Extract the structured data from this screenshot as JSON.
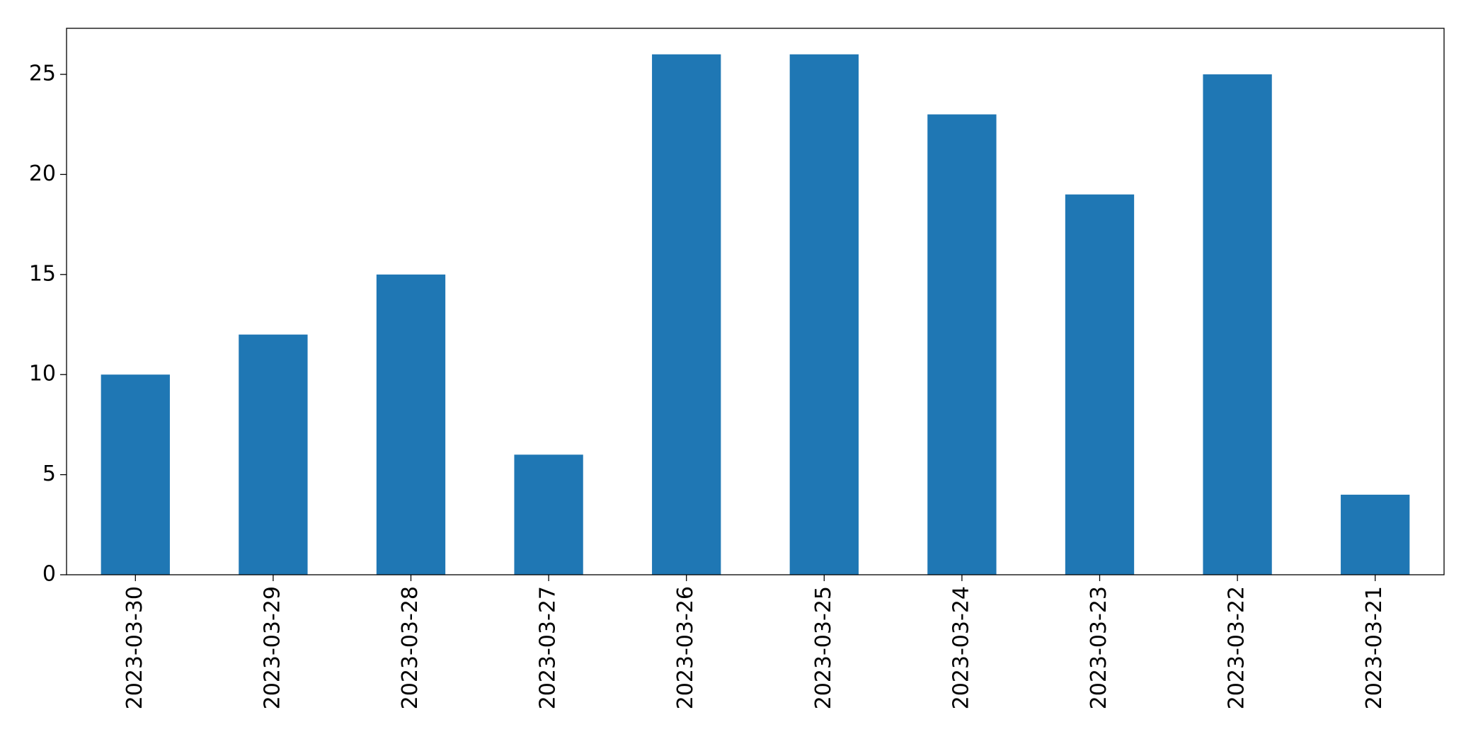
{
  "chart_data": {
    "type": "bar",
    "categories": [
      "2023-03-30",
      "2023-03-29",
      "2023-03-28",
      "2023-03-27",
      "2023-03-26",
      "2023-03-25",
      "2023-03-24",
      "2023-03-23",
      "2023-03-22",
      "2023-03-21"
    ],
    "values": [
      10,
      12,
      15,
      6,
      26,
      26,
      23,
      19,
      25,
      4
    ],
    "color": "#1f77b4",
    "ylim": [
      0,
      27.3
    ],
    "yticks": [
      0,
      5,
      10,
      15,
      20,
      25
    ],
    "grid": false
  }
}
